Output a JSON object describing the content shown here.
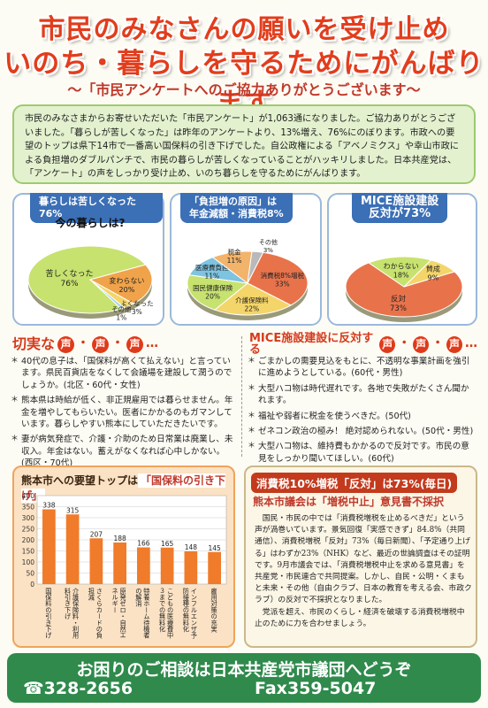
{
  "header": {
    "line1": "市民のみなさんの願いを受け止め",
    "line2": "いのち・暮らしを守るためにがんばります",
    "sub": "～「市民アンケートへのご協力ありがとうございます～"
  },
  "intro": {
    "text": "市民のみなさまからお寄せいただいた「市民アンケート」が1,063通になりました。ご協力ありがとうございました。「暮らしが苦しくなった」は昨年のアンケートより、13%増え、76%にのぼります。市政への要望のトップは県下14市で一番高い国保料の引き下げでした。自公政権による「アベノミクス」や幸山市政による負担増のダブルパンチで、市民の暮らしが苦しくなっていることがハッキリしました。日本共産党は、「アンケート」の声をしっかり受け止め、いのち暮らしを守るためにがんばります。"
  },
  "colors": {
    "red": "#e23d1c",
    "green": "#2f8a4c",
    "blue": "#3b6fb6",
    "orange": "#f0a35a"
  },
  "pies": {
    "p1": {
      "tab": "暮らしは苦しくなった76%",
      "title": "今の暮らしは?",
      "slices": [
        {
          "label": "苦しくなった",
          "pct": "76%",
          "value": 76,
          "color": "#c7e26f"
        },
        {
          "label": "変わらない",
          "pct": "20%",
          "value": 20,
          "color": "#f0a34a"
        },
        {
          "label": "よくなった",
          "pct": "3%",
          "value": 3,
          "color": "#f4d56a"
        },
        {
          "label": "その他",
          "pct": "1%",
          "value": 1,
          "color": "#9fd3ea"
        }
      ]
    },
    "p2": {
      "tab": "「負担増の原因」は",
      "tab2": "年金減額・消費税8%",
      "slices": [
        {
          "label": "消費税8%増税",
          "pct": "33%",
          "value": 33,
          "color": "#e8734b"
        },
        {
          "label": "介護保険料",
          "pct": "22%",
          "value": 22,
          "color": "#f4d56a"
        },
        {
          "label": "国民健康保険",
          "pct": "20%",
          "value": 20,
          "color": "#c7e26f"
        },
        {
          "label": "医療費負担",
          "pct": "11%",
          "value": 11,
          "color": "#7ec3e0"
        },
        {
          "label": "税金",
          "pct": "11%",
          "value": 11,
          "color": "#f2b36a"
        },
        {
          "label": "その他",
          "pct": "3%",
          "value": 3,
          "color": "#b9b9b9"
        }
      ]
    },
    "p3": {
      "tab": "MICE施設建設",
      "tab2": "反対が73%",
      "slices": [
        {
          "label": "反対",
          "pct": "73%",
          "value": 73,
          "color": "#e8734b"
        },
        {
          "label": "わからない",
          "pct": "18%",
          "value": 18,
          "color": "#c7e26f"
        },
        {
          "label": "賛成",
          "pct": "9%",
          "value": 9,
          "color": "#f4d56a"
        }
      ]
    }
  },
  "voices_left": {
    "title_a": "切実な",
    "title_b": "声",
    "dots": "…",
    "items": [
      "40代の息子は、「国保料が高くて払えない」と言っています。県民百貨店をなくして会議場を建設して潤うのでしょうか。(北区・60代・女性)",
      "熊本県は時給が低く、非正規雇用では暮らせません。年金を増やしてもらいたい。医者にかかるのもガマンしています。暮らしやすい熊本にしていただきたいです。",
      "妻が病気発症で、介護・介助のため日常業は廃業し、未収入。年金はない。蓄えがなくなれば心中しかない。(西区・70代)"
    ]
  },
  "voices_right": {
    "title_a": "MICE施設建設に反対する",
    "title_b": "声",
    "dots": "…",
    "items": [
      "ごまかしの需要見込をもとに、不透明な事業計画を強引に進めようとしている。(60代・男性)",
      "大型ハコ物は時代遅れです。各地で失敗がたくさん聞かれます。",
      "福祉や弱者に税金を使うべきだ。(50代)",
      "ゼネコン政治の極み！ 絶対認められない。(50代・男性)",
      "大型ハコ物は、維持費もかかるので反対です。市民の意見をしっかり聞いてほしい。(60代)"
    ]
  },
  "bar_panel": {
    "title_a": "熊本市への要望トップは",
    "title_b": "「国保料の引き下げ」"
  },
  "chart_data": {
    "type": "bar",
    "categories": [
      "国保料の引き下げ",
      "介護保険料・利用料引き下げ",
      "さくらカードの負担減",
      "原発ゼロ・自然エネルギー",
      "特養ホーム待機者の解消",
      "こどもの医療費中３までの無料化",
      "インフルエンザ予防接種の無料化",
      "雇用対策の充実"
    ],
    "values": [
      338,
      315,
      207,
      188,
      166,
      165,
      148,
      145
    ],
    "yticks": [
      "400",
      "350",
      "300",
      "250",
      "200",
      "150",
      "100",
      "50",
      "0"
    ],
    "ylim": [
      0,
      400
    ],
    "grid": true,
    "bar_color": "#f07b2a"
  },
  "tax": {
    "t1": "消費税10%増税「反対」は73%(毎日)",
    "t2": "熊本市議会は「増税中止」意見書不採択",
    "p1": "国民・市民の中では「消費税増税を止めるべきだ」という声が渦巻いています。景気回復「実感できず」84.8%（共同通信）、消費税増税「反対」73%（毎日新聞）、「予定通り上げる」はわずか23%（NHK）など、最近の世論調査はその証明です。9月市議会では、「消費税増税中止を求める意見書」を共産党・市民連合で共同提案。しかし、自民・公明・くまもと未来・その他（自由クラブ、日本の教育を考える会、市政クラブ）の反対で不採択となりました。",
    "p2": "党派を超え、市民のくらし・経済を破壊する消費税増税中止のために力を合わせましょう。"
  },
  "footer": {
    "line1": "お困りのご相談は日本共産党市議団へどうぞ",
    "tel": "☎328-2656",
    "fax": "Fax359-5047"
  }
}
